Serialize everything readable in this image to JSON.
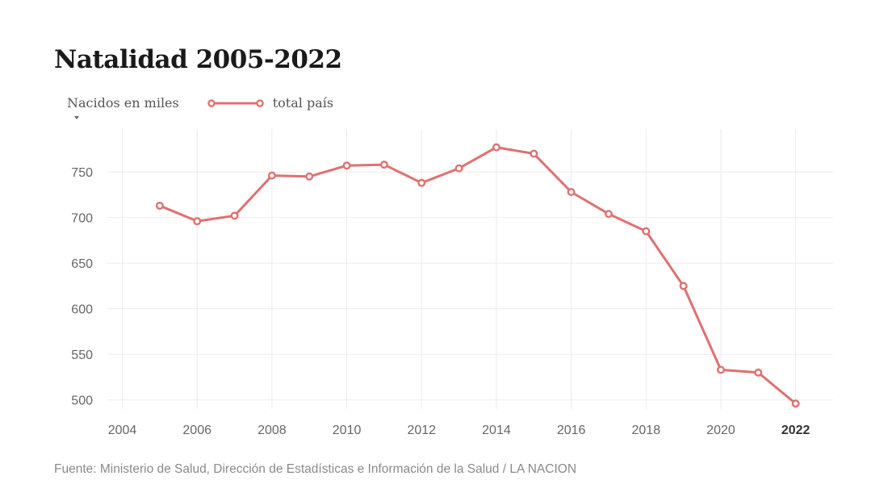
{
  "chart_data": {
    "type": "line",
    "title": "Natalidad 2005-2022",
    "ylabel": "Nacidos en miles",
    "xlabel": "",
    "xlim": [
      2003.6,
      2023
    ],
    "ylim": [
      490,
      797
    ],
    "x_ticks": [
      2004,
      2006,
      2008,
      2010,
      2012,
      2014,
      2016,
      2018,
      2020,
      2022
    ],
    "x_tick_labels": [
      "2004",
      "2006",
      "2008",
      "2010",
      "2012",
      "2014",
      "2016",
      "2018",
      "2020",
      "2022"
    ],
    "highlight_tick": "2022",
    "y_ticks": [
      500,
      550,
      600,
      650,
      700,
      750
    ],
    "y_tick_labels": [
      "500",
      "550",
      "600",
      "650",
      "700",
      "750"
    ],
    "grid": true,
    "legend_position": "top-left",
    "series": [
      {
        "name": "total país",
        "color": "#e07070",
        "x": [
          2005,
          2006,
          2007,
          2008,
          2009,
          2010,
          2011,
          2012,
          2013,
          2014,
          2015,
          2016,
          2017,
          2018,
          2019,
          2020,
          2021,
          2022
        ],
        "values": [
          713,
          696,
          702,
          746,
          745,
          757,
          758,
          738,
          754,
          777,
          770,
          728,
          704,
          685,
          625,
          533,
          530,
          496
        ]
      }
    ]
  },
  "source": "Fuente: Ministerio de Salud, Dirección de Estadísticas e Información de la Salud / LA NACION"
}
